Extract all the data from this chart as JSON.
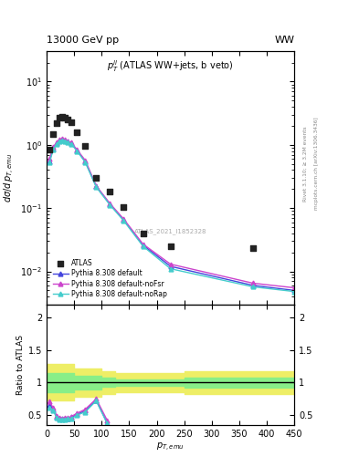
{
  "title_left": "13000 GeV pp",
  "title_right": "WW",
  "plot_label": "$p_T^{ll}$ (ATLAS WW+jets, b veto)",
  "atlas_label": "ATLAS_2021_I1852328",
  "right_label1": "Rivet 3.1.10; ≥ 3.2M events",
  "right_label2": "mcplots.cern.ch [arXiv:1306.3436]",
  "xlabel": "$p_{T,emu}$",
  "ylabel": "$d\\sigma/d\\,p_{T,emu}$",
  "ylabel_ratio": "Ratio to ATLAS",
  "atlas_x": [
    5,
    12,
    18,
    23,
    28,
    33,
    38,
    45,
    55,
    70,
    90,
    115,
    140,
    175,
    225,
    375
  ],
  "atlas_y": [
    0.85,
    1.5,
    2.2,
    2.65,
    2.75,
    2.65,
    2.5,
    2.25,
    1.6,
    0.97,
    0.3,
    0.18,
    0.105,
    0.04,
    0.025,
    0.023
  ],
  "py_x": [
    5,
    12,
    18,
    23,
    28,
    33,
    38,
    45,
    55,
    70,
    90,
    115,
    140,
    175,
    225,
    375,
    450
  ],
  "py_default_y": [
    0.55,
    0.88,
    1.05,
    1.18,
    1.22,
    1.18,
    1.12,
    1.05,
    0.82,
    0.55,
    0.22,
    0.115,
    0.065,
    0.026,
    0.012,
    0.006,
    0.005
  ],
  "py_noFsr_y": [
    0.6,
    0.92,
    1.08,
    1.21,
    1.25,
    1.21,
    1.15,
    1.08,
    0.84,
    0.57,
    0.225,
    0.118,
    0.067,
    0.027,
    0.013,
    0.0065,
    0.0055
  ],
  "py_noRap_y": [
    0.52,
    0.85,
    1.02,
    1.15,
    1.19,
    1.15,
    1.09,
    1.02,
    0.8,
    0.53,
    0.215,
    0.112,
    0.063,
    0.025,
    0.011,
    0.0057,
    0.0048
  ],
  "ratio_x": [
    5,
    12,
    18,
    23,
    28,
    33,
    38,
    45,
    55,
    70,
    90,
    110
  ],
  "ratio_default": [
    0.65,
    0.59,
    0.48,
    0.45,
    0.44,
    0.44,
    0.45,
    0.47,
    0.51,
    0.57,
    0.73,
    0.38
  ],
  "ratio_noFsr": [
    0.71,
    0.61,
    0.49,
    0.46,
    0.45,
    0.46,
    0.46,
    0.48,
    0.53,
    0.59,
    0.75,
    0.42
  ],
  "ratio_noRap": [
    0.61,
    0.57,
    0.46,
    0.43,
    0.43,
    0.43,
    0.44,
    0.45,
    0.5,
    0.55,
    0.72,
    0.37
  ],
  "band_x": [
    0,
    50,
    100,
    125,
    150,
    200,
    250,
    300,
    350,
    450
  ],
  "band_green_lo": [
    0.85,
    0.9,
    0.93,
    0.95,
    0.95,
    0.95,
    0.92,
    0.92,
    0.92,
    0.92
  ],
  "band_green_hi": [
    1.15,
    1.1,
    1.07,
    1.05,
    1.05,
    1.05,
    1.08,
    1.08,
    1.08,
    1.08
  ],
  "band_yellow_lo": [
    0.72,
    0.78,
    0.82,
    0.85,
    0.85,
    0.85,
    0.82,
    0.82,
    0.82,
    0.82
  ],
  "band_yellow_hi": [
    1.28,
    1.22,
    1.18,
    1.15,
    1.15,
    1.15,
    1.18,
    1.18,
    1.18,
    1.18
  ],
  "color_default": "#4444dd",
  "color_noFsr": "#cc44cc",
  "color_noRap": "#44cccc",
  "color_atlas": "#222222",
  "color_green": "#88ee88",
  "color_yellow": "#eeee66",
  "ylim_main": [
    0.003,
    30
  ],
  "ylim_ratio": [
    0.35,
    2.2
  ],
  "xlim": [
    0,
    450
  ],
  "yticks_ratio": [
    0.5,
    1.0,
    1.5,
    2.0
  ],
  "ytick_labels_ratio": [
    "0.5",
    "1",
    "1.5",
    "2"
  ]
}
